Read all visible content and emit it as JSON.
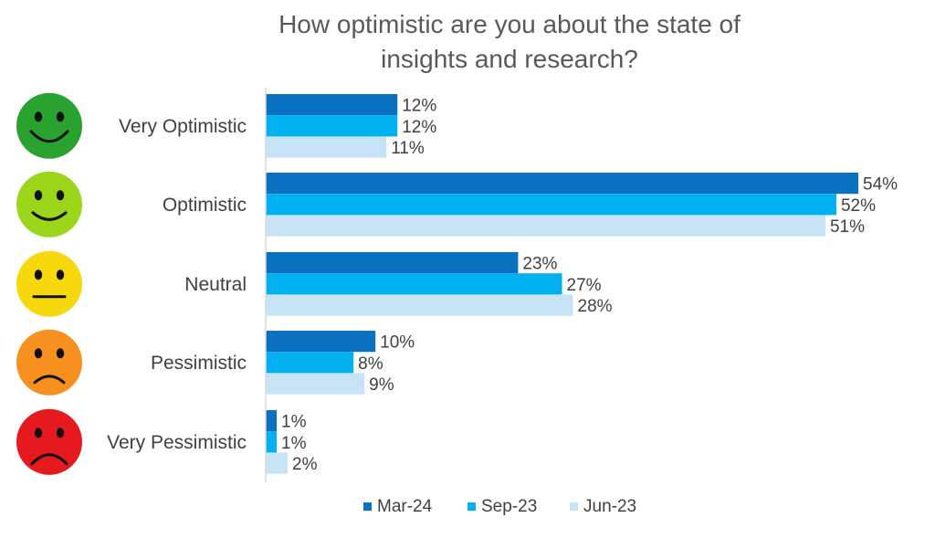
{
  "chart_data": {
    "type": "bar",
    "orientation": "horizontal",
    "title": "How optimistic are you about the state of insights and research?",
    "title_lines": [
      "How optimistic are you about the state of",
      "insights and research?"
    ],
    "categories": [
      "Very Optimistic",
      "Optimistic",
      "Neutral",
      "Pessimistic",
      "Very Pessimistic"
    ],
    "category_icons": [
      "very-happy-face-icon",
      "happy-face-icon",
      "neutral-face-icon",
      "sad-face-icon",
      "very-sad-face-icon"
    ],
    "icon_colors": [
      "#2aa22f",
      "#9bd61a",
      "#f7d80c",
      "#f7901e",
      "#e5191e"
    ],
    "value_unit": "%",
    "series": [
      {
        "name": "Mar-24",
        "color": "#0a70c0",
        "values": [
          12,
          54,
          23,
          10,
          1
        ]
      },
      {
        "name": "Sep-23",
        "color": "#00b0ef",
        "values": [
          12,
          52,
          27,
          8,
          1
        ]
      },
      {
        "name": "Jun-23",
        "color": "#c6e4f5",
        "values": [
          11,
          51,
          28,
          9,
          2
        ]
      }
    ],
    "xlim": [
      0,
      54
    ],
    "grid": false,
    "legend_position": "bottom",
    "data_labels": true
  }
}
